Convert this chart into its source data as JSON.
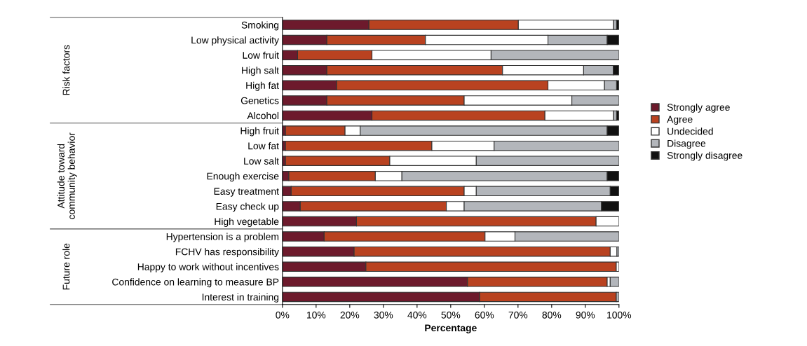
{
  "chart_data": {
    "type": "bar",
    "orientation": "horizontal",
    "stacked": true,
    "categories": [
      "Smoking",
      "Low physical activity",
      "Low fruit",
      "High salt",
      "High fat",
      "Genetics",
      "Alcohol",
      "High fruit",
      "Low fat",
      "Low salt",
      "Enough exercise",
      "Easy treatment",
      "Easy check up",
      "High vegetable",
      "Hypertension is a problem",
      "FCHV has responsibility",
      "Happy to work without incentives",
      "Confidence on learning to measure BP",
      "Interest in training"
    ],
    "series": [
      {
        "name": "Strongly agree",
        "color": "#6d1a2c",
        "values": [
          25.7,
          13.2,
          4.5,
          13.2,
          16.1,
          13.2,
          26.6,
          0.9,
          0.9,
          0.9,
          1.9,
          2.6,
          5.3,
          22.0,
          12.4,
          21.3,
          24.8,
          55.0,
          58.6
        ]
      },
      {
        "name": "Agree",
        "color": "#b94220",
        "values": [
          44.4,
          29.3,
          22.1,
          52.2,
          62.8,
          40.8,
          51.4,
          17.7,
          43.5,
          31.0,
          25.7,
          51.4,
          43.4,
          71.2,
          47.8,
          76.1,
          74.4,
          41.5,
          40.6
        ]
      },
      {
        "name": "Undecided",
        "color": "#ffffff",
        "values": [
          28.3,
          36.4,
          35.4,
          24.1,
          16.8,
          32.0,
          20.4,
          4.5,
          18.5,
          25.7,
          7.9,
          3.6,
          5.3,
          6.8,
          8.9,
          2.0,
          0.8,
          0.9,
          0
        ]
      },
      {
        "name": "Disagree",
        "color": "#b3b6bb",
        "values": [
          0.9,
          17.6,
          38.0,
          8.8,
          3.6,
          14.0,
          0.9,
          73.4,
          37.1,
          42.4,
          61.0,
          39.8,
          40.8,
          0,
          30.9,
          0.6,
          0,
          2.6,
          0.8
        ]
      },
      {
        "name": "Strongly disagree",
        "color": "#111111",
        "values": [
          0.7,
          3.5,
          0,
          1.7,
          0.7,
          0,
          0.7,
          3.5,
          0,
          0,
          3.5,
          2.6,
          5.2,
          0,
          0,
          0,
          0,
          0,
          0
        ]
      }
    ],
    "xlim": [
      0,
      100
    ],
    "xticks": [
      {
        "value": 0,
        "label": "0%"
      },
      {
        "value": 10,
        "label": "10%"
      },
      {
        "value": 20,
        "label": "20%"
      },
      {
        "value": 30,
        "label": "30%"
      },
      {
        "value": 40,
        "label": "40%"
      },
      {
        "value": 50,
        "label": "50%"
      },
      {
        "value": 60,
        "label": "60%"
      },
      {
        "value": 70,
        "label": "70%"
      },
      {
        "value": 80,
        "label": "80%"
      },
      {
        "value": 90,
        "label": "90%"
      },
      {
        "value": 100,
        "label": "100%"
      }
    ],
    "xlabel": "Percentage",
    "annotations": [
      "Risk factors",
      "Attitude toward\ncommunity behavior",
      "Future role"
    ],
    "legend": "right",
    "grid": false
  }
}
